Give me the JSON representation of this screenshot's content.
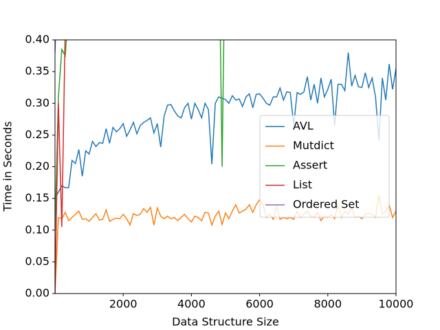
{
  "chart_data": {
    "type": "line",
    "x_label": "Data Structure Size",
    "y_label": "Time in Seconds",
    "x": [
      0,
      100,
      200,
      300,
      400,
      500,
      600,
      700,
      800,
      900,
      1000,
      1100,
      1200,
      1300,
      1400,
      1500,
      1600,
      1700,
      1800,
      1900,
      2000,
      2100,
      2200,
      2300,
      2400,
      2500,
      2600,
      2700,
      2800,
      2900,
      3000,
      3100,
      3200,
      3300,
      3400,
      3500,
      3600,
      3700,
      3800,
      3900,
      4000,
      4100,
      4200,
      4300,
      4400,
      4500,
      4600,
      4700,
      4800,
      4900,
      5000,
      5100,
      5200,
      5300,
      5400,
      5500,
      5600,
      5700,
      5800,
      5900,
      6000,
      6100,
      6200,
      6300,
      6400,
      6500,
      6600,
      6700,
      6800,
      6900,
      7000,
      7100,
      7200,
      7300,
      7400,
      7500,
      7600,
      7700,
      7800,
      7900,
      8000,
      8100,
      8200,
      8300,
      8400,
      8500,
      8600,
      8700,
      8800,
      8900,
      9000,
      9100,
      9200,
      9300,
      9400,
      9500,
      9600,
      9700,
      9800,
      9900,
      10000
    ],
    "series": [
      {
        "name": "AVL",
        "color": "#1f77b4",
        "values": [
          0.15,
          0.16,
          0.17,
          0.167,
          0.167,
          0.21,
          0.205,
          0.227,
          0.185,
          0.225,
          0.22,
          0.24,
          0.232,
          0.238,
          0.237,
          0.26,
          0.237,
          0.262,
          0.255,
          0.26,
          0.268,
          0.248,
          0.258,
          0.27,
          0.252,
          0.265,
          0.27,
          0.273,
          0.277,
          0.253,
          0.268,
          0.231,
          0.28,
          0.297,
          0.298,
          0.288,
          0.28,
          0.277,
          0.293,
          0.3,
          0.275,
          0.3,
          0.29,
          0.277,
          0.3,
          0.29,
          0.204,
          0.3,
          0.31,
          0.308,
          0.306,
          0.3,
          0.312,
          0.305,
          0.307,
          0.295,
          0.31,
          0.315,
          0.293,
          0.314,
          0.315,
          0.308,
          0.3,
          0.297,
          0.31,
          0.31,
          0.324,
          0.305,
          0.318,
          0.317,
          0.265,
          0.317,
          0.314,
          0.318,
          0.342,
          0.305,
          0.33,
          0.3,
          0.34,
          0.31,
          0.322,
          0.338,
          0.265,
          0.33,
          0.33,
          0.32,
          0.38,
          0.327,
          0.344,
          0.326,
          0.325,
          0.348,
          0.325,
          0.34,
          0.31,
          0.242,
          0.34,
          0.305,
          0.362,
          0.322,
          0.355
        ]
      },
      {
        "name": "Mutdict",
        "color": "#ff7f0e",
        "values": [
          0.0,
          0.12,
          0.118,
          0.128,
          0.115,
          0.12,
          0.125,
          0.13,
          0.117,
          0.118,
          0.114,
          0.12,
          0.126,
          0.116,
          0.117,
          0.132,
          0.114,
          0.117,
          0.119,
          0.118,
          0.125,
          0.118,
          0.108,
          0.126,
          0.123,
          0.125,
          0.134,
          0.128,
          0.136,
          0.108,
          0.135,
          0.122,
          0.118,
          0.122,
          0.118,
          0.12,
          0.115,
          0.12,
          0.125,
          0.118,
          0.113,
          0.122,
          0.12,
          0.115,
          0.128,
          0.127,
          0.108,
          0.122,
          0.13,
          0.109,
          0.127,
          0.118,
          0.13,
          0.14,
          0.127,
          0.13,
          0.133,
          0.14,
          0.128,
          0.14,
          0.148,
          0.14,
          0.12,
          0.125,
          0.117,
          0.138,
          0.117,
          0.12,
          0.118,
          0.12,
          0.117,
          0.13,
          0.12,
          0.125,
          0.13,
          0.122,
          0.12,
          0.128,
          0.115,
          0.122,
          0.12,
          0.125,
          0.118,
          0.14,
          0.12,
          0.13,
          0.125,
          0.135,
          0.12,
          0.122,
          0.118,
          0.125,
          0.127,
          0.125,
          0.12,
          0.155,
          0.125,
          0.13,
          0.14,
          0.12,
          0.13
        ]
      },
      {
        "name": "Assert",
        "color": "#2ca02c",
        "x": [
          0,
          100,
          200,
          300,
          400,
          4800,
          4900,
          5000
        ],
        "values": [
          0.1,
          0.31,
          0.385,
          0.375,
          0.45,
          0.6,
          0.2,
          0.6
        ]
      },
      {
        "name": "List",
        "color": "#d62728",
        "x": [
          0,
          100,
          200,
          300
        ],
        "values": [
          0.0,
          0.3,
          0.105,
          0.42
        ]
      },
      {
        "name": "Ordered Set",
        "color": "#9467bd",
        "x": [
          0,
          50
        ],
        "values": [
          0.38,
          0.45
        ]
      }
    ],
    "xlim": [
      0,
      10000
    ],
    "ylim": [
      0,
      0.4
    ],
    "xticks": [
      2000,
      4000,
      6000,
      8000,
      10000
    ],
    "yticks": [
      {
        "value": 0,
        "label": "0.00"
      },
      {
        "value": 0.05,
        "label": "0.05"
      },
      {
        "value": 0.1,
        "label": "0.10"
      },
      {
        "value": 0.15,
        "label": "0.15"
      },
      {
        "value": 0.2,
        "label": "0.20"
      },
      {
        "value": 0.25,
        "label": "0.25"
      },
      {
        "value": 0.3,
        "label": "0.30"
      },
      {
        "value": 0.35,
        "label": "0.35"
      },
      {
        "value": 0.4,
        "label": "0.40"
      }
    ],
    "grid": false,
    "legend": "right"
  }
}
